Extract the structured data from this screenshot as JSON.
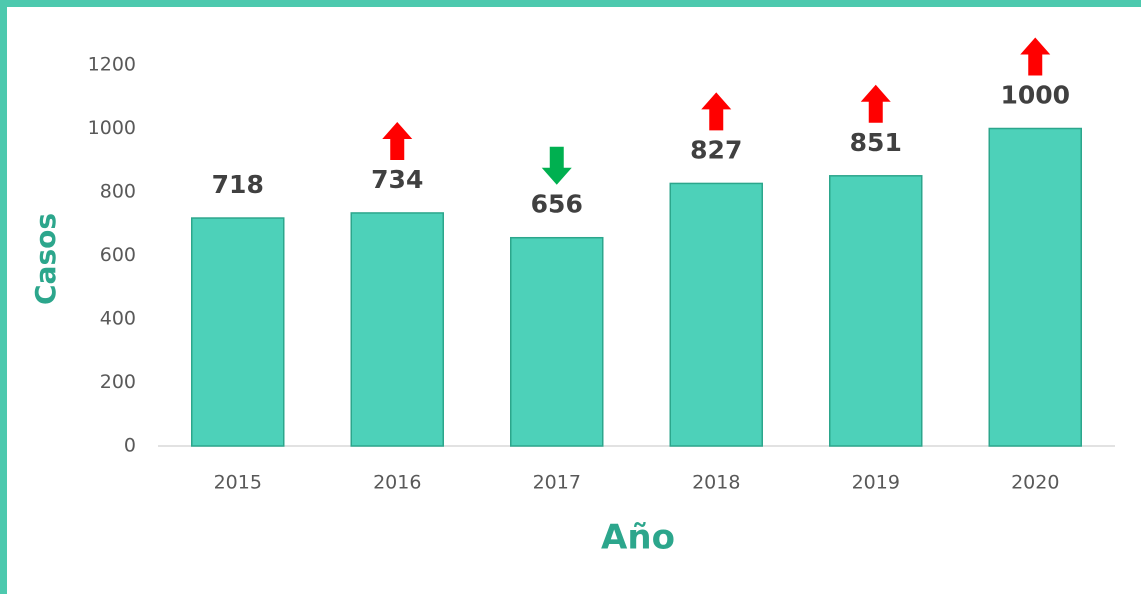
{
  "chart_data": {
    "type": "bar",
    "categories": [
      "2015",
      "2016",
      "2017",
      "2018",
      "2019",
      "2020"
    ],
    "values": [
      718,
      734,
      656,
      827,
      851,
      1000
    ],
    "color": "#4dd1b9",
    "edge_color": "#2ca68c",
    "up_color": "#ff0000",
    "down_color": "#00b050",
    "xlabel": "Año",
    "ylabel": "Casos",
    "ylim": [
      0,
      1200
    ],
    "yticks": [
      0,
      200,
      400,
      600,
      800,
      1000,
      1200
    ]
  }
}
